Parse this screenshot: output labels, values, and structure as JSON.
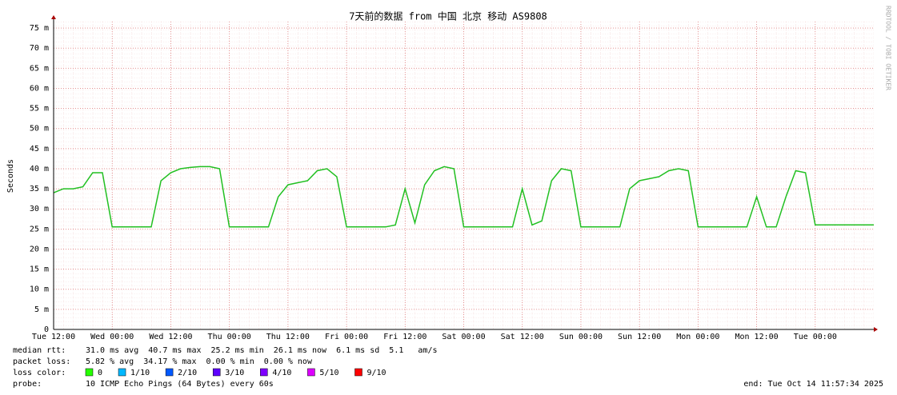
{
  "chart_data": {
    "type": "line",
    "title": "7天前的数据 from 中国 北京 移动 AS9808",
    "y_label": "Seconds",
    "watermark": "RRDTOOL / TOBI OETIKER",
    "categories": [
      "Tue 12:00",
      null,
      null,
      null,
      null,
      null,
      "Wed 00:00",
      null,
      null,
      null,
      null,
      null,
      "Wed 12:00",
      null,
      null,
      null,
      null,
      null,
      "Thu 00:00",
      null,
      null,
      null,
      null,
      null,
      "Thu 12:00",
      null,
      null,
      null,
      null,
      null,
      "Fri 00:00",
      null,
      null,
      null,
      null,
      null,
      "Fri 12:00",
      null,
      null,
      null,
      null,
      null,
      "Sat 00:00",
      null,
      null,
      null,
      null,
      null,
      "Sat 12:00",
      null,
      null,
      null,
      null,
      null,
      "Sun 00:00",
      null,
      null,
      null,
      null,
      null,
      "Sun 12:00",
      null,
      null,
      null,
      null,
      null,
      "Mon 00:00",
      null,
      null,
      null,
      null,
      null,
      "Mon 12:00",
      null,
      null,
      null,
      null,
      null,
      "Tue 00:00",
      null,
      null,
      null,
      null,
      null,
      null
    ],
    "series": [
      {
        "color": "#22c022",
        "values": [
          0.034,
          0.035,
          0.035,
          0.0355,
          0.039,
          0.039,
          0.0255,
          0.0255,
          0.0255,
          0.0255,
          0.0255,
          0.037,
          0.039,
          0.04,
          0.0403,
          0.0405,
          0.0405,
          0.04,
          0.0255,
          0.0255,
          0.0255,
          0.0255,
          0.0255,
          0.033,
          0.036,
          0.0365,
          0.037,
          0.0395,
          0.04,
          0.038,
          0.0255,
          0.0255,
          0.0255,
          0.0255,
          0.0255,
          0.026,
          0.035,
          0.0265,
          0.036,
          0.0395,
          0.0405,
          0.04,
          0.0255,
          0.0255,
          0.0255,
          0.0255,
          0.0255,
          0.0255,
          0.035,
          0.026,
          0.027,
          0.037,
          0.04,
          0.0395,
          0.0255,
          0.0255,
          0.0255,
          0.0255,
          0.0255,
          0.035,
          0.037,
          0.0375,
          0.038,
          0.0395,
          0.04,
          0.0395,
          0.0255,
          0.0255,
          0.0255,
          0.0255,
          0.0255,
          0.0255,
          0.033,
          0.0255,
          0.0255,
          0.033,
          0.0395,
          0.039,
          0.026,
          0.026,
          0.026,
          0.026,
          0.026,
          0.026,
          0.026
        ]
      }
    ],
    "ylim": [
      0,
      0.0766
    ],
    "yticks": [
      0,
      {
        "value": 0.005,
        "label": "5 m"
      },
      {
        "value": 0.01,
        "label": "10 m"
      },
      {
        "value": 0.015,
        "label": "15 m"
      },
      {
        "value": 0.02,
        "label": "20 m"
      },
      {
        "value": 0.025,
        "label": "25 m"
      },
      {
        "value": 0.03,
        "label": "30 m"
      },
      {
        "value": 0.035,
        "label": "35 m"
      },
      {
        "value": 0.04,
        "label": "40 m"
      },
      {
        "value": 0.045,
        "label": "45 m"
      },
      {
        "value": 0.05,
        "label": "50 m"
      },
      {
        "value": 0.055,
        "label": "55 m"
      },
      {
        "value": 0.06,
        "label": "60 m"
      },
      {
        "value": 0.065,
        "label": "65 m"
      },
      {
        "value": 0.07,
        "label": "70 m"
      },
      {
        "value": 0.075,
        "label": "75 m"
      }
    ],
    "grid": true
  },
  "footer": {
    "median_rtt": {
      "label": "median rtt:",
      "text": "31.0 ms avg  40.7 ms max  25.2 ms min  26.1 ms now  6.1 ms sd  5.1   am/s"
    },
    "packet_loss": {
      "label": "packet loss:",
      "text": "5.82 % avg  34.17 % max  0.00 % min  0.00 % now"
    },
    "loss_color": {
      "label": "loss color:",
      "items": [
        {
          "color": "#26ff00",
          "label": "0"
        },
        {
          "color": "#00b8ff",
          "label": "1/10"
        },
        {
          "color": "#0059ff",
          "label": "2/10"
        },
        {
          "color": "#5e00ff",
          "label": "3/10"
        },
        {
          "color": "#7e00ff",
          "label": "4/10"
        },
        {
          "color": "#dd00ff",
          "label": "5/10"
        },
        {
          "color": "#ff0000",
          "label": "9/10"
        }
      ]
    },
    "probe": {
      "label": "probe:",
      "text": "10 ICMP Echo Pings (64 Bytes) every 60s"
    },
    "end": "end: Tue Oct 14 11:57:34 2025"
  }
}
